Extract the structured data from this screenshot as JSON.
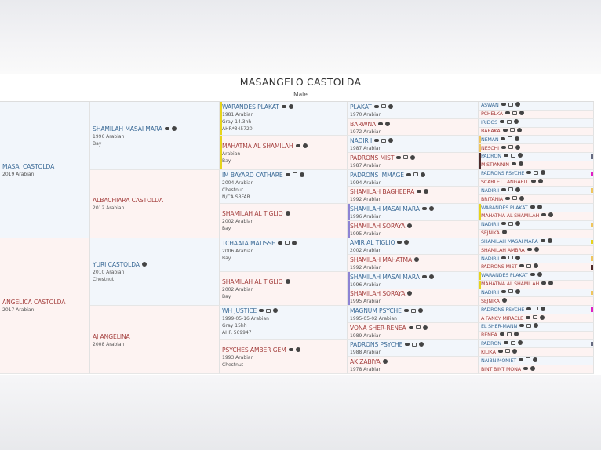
{
  "header": {
    "title": "MASANGELO CASTOLDA",
    "subtitle": "Male"
  },
  "colors": {
    "male_name": "#3d6c98",
    "female_name": "#a5403f",
    "male_bg": "#f2f6fb",
    "female_bg": "#fdf3f2",
    "yellow": "#e6d41c",
    "purple": "#8d83d4",
    "orange": "#efc55e",
    "brown": "#4e2a2a",
    "gray": "#666a80",
    "magenta": "#e01fc4"
  },
  "generations": [
    [
      {
        "name": "MASAI CASTOLDA",
        "lines": [
          "2019 Arabian"
        ],
        "icons": []
      },
      {
        "name": "ANGELICA CASTOLDA",
        "lines": [
          "2017 Arabian"
        ],
        "icons": []
      }
    ],
    [
      {
        "name": "SHAMILAH MASAI MARA",
        "lines": [
          "1996 Arabian",
          "Bay"
        ],
        "icons": [
          "comment",
          "info"
        ]
      },
      {
        "name": "ALBACHIARA CASTOLDA",
        "lines": [
          "2012 Arabian"
        ],
        "icons": []
      },
      {
        "name": "YURI CASTOLDA",
        "lines": [
          "2010 Arabian",
          "Chestnut"
        ],
        "icons": [
          "info"
        ]
      },
      {
        "name": "AJ ANGELINA",
        "lines": [
          "2008 Arabian"
        ],
        "icons": []
      }
    ],
    [
      {
        "name": "WARANDES PLAKAT",
        "lines": [
          "1981 Arabian",
          "Gray 14.3hh",
          "AHR*345720"
        ],
        "icons": [
          "comment",
          "info"
        ],
        "markL": "yellow",
        "top": true
      },
      {
        "name": "MAHATMA AL SHAMILAH",
        "lines": [
          "Arabian",
          "Bay"
        ],
        "icons": [
          "comment",
          "info"
        ],
        "markL": "yellow"
      },
      {
        "name": "IM BAYARD CATHARE",
        "lines": [
          "2004 Arabian",
          "Chestnut",
          "N/CA SBFAR"
        ],
        "icons": [
          "comment",
          "photo",
          "info"
        ],
        "top": true
      },
      {
        "name": "SHAMILAH AL TIGLIO",
        "lines": [
          "2002 Arabian",
          "Bay"
        ],
        "icons": [
          "info"
        ]
      },
      {
        "name": "TCHAATA MATISSE",
        "lines": [
          "2006 Arabian",
          "Bay"
        ],
        "icons": [
          "comment",
          "photo",
          "info"
        ],
        "top": true
      },
      {
        "name": "SHAMILAH AL TIGLIO",
        "lines": [
          "2002 Arabian",
          "Bay"
        ],
        "icons": [
          "info"
        ]
      },
      {
        "name": "WH JUSTICE",
        "lines": [
          "1999-05-16 Arabian",
          "Gray 15hh",
          "AHR 569947"
        ],
        "icons": [
          "comment",
          "photo",
          "info"
        ],
        "top": true
      },
      {
        "name": "PSYCHES AMBER GEM",
        "lines": [
          "1993 Arabian",
          "Chestnut"
        ],
        "icons": [
          "comment",
          "info"
        ]
      }
    ],
    [
      {
        "name": "PLAKAT",
        "lines": [
          "1970 Arabian"
        ],
        "icons": [
          "comment",
          "photo",
          "info"
        ]
      },
      {
        "name": "BARWNA",
        "lines": [
          "1972 Arabian"
        ],
        "icons": [
          "comment",
          "info"
        ]
      },
      {
        "name": "NADIR I",
        "lines": [
          "1987 Arabian"
        ],
        "icons": [
          "comment",
          "photo",
          "info"
        ]
      },
      {
        "name": "PADRONS MIST",
        "lines": [
          "1987 Arabian"
        ],
        "icons": [
          "comment",
          "photo",
          "info"
        ]
      },
      {
        "name": "PADRONS IMMAGE",
        "lines": [
          "1994 Arabian"
        ],
        "icons": [
          "comment",
          "photo",
          "info"
        ]
      },
      {
        "name": "SHAMILAH BAGHEERA",
        "lines": [
          "1992 Arabian"
        ],
        "icons": [
          "comment",
          "info"
        ]
      },
      {
        "name": "SHAMILAH MASAI MARA",
        "lines": [
          "1996 Arabian"
        ],
        "icons": [
          "comment",
          "info"
        ],
        "markL": "purple"
      },
      {
        "name": "SHAMILAH SORAYA",
        "lines": [
          "1995 Arabian"
        ],
        "icons": [
          "info"
        ],
        "markL": "purple"
      },
      {
        "name": "AMIR AL TIGLIO",
        "lines": [
          "2002 Arabian"
        ],
        "icons": [
          "comment",
          "info"
        ]
      },
      {
        "name": "SHAMILAH MAHATMA",
        "lines": [
          "1992 Arabian"
        ],
        "icons": [
          "info"
        ]
      },
      {
        "name": "SHAMILAH MASAI MARA",
        "lines": [
          "1996 Arabian"
        ],
        "icons": [
          "comment",
          "info"
        ],
        "markL": "purple"
      },
      {
        "name": "SHAMILAH SORAYA",
        "lines": [
          "1995 Arabian"
        ],
        "icons": [
          "info"
        ],
        "markL": "purple"
      },
      {
        "name": "MAGNUM PSYCHE",
        "lines": [
          "1995-05-02 Arabian"
        ],
        "icons": [
          "comment",
          "photo",
          "info"
        ]
      },
      {
        "name": "VONA SHER-RENEA",
        "lines": [
          "1989 Arabian"
        ],
        "icons": [
          "comment",
          "photo",
          "info"
        ]
      },
      {
        "name": "PADRONS PSYCHE",
        "lines": [
          "1988 Arabian"
        ],
        "icons": [
          "comment",
          "photo",
          "info"
        ]
      },
      {
        "name": "AK ZABIYA",
        "lines": [
          "1978 Arabian"
        ],
        "icons": [
          "info"
        ]
      }
    ],
    [
      {
        "name": "ASWAN",
        "icons": [
          "comment",
          "photo",
          "info"
        ]
      },
      {
        "name": "PCHELKA",
        "icons": [
          "comment",
          "photo",
          "info"
        ]
      },
      {
        "name": "IRIDOS",
        "icons": [
          "comment",
          "photo",
          "info"
        ]
      },
      {
        "name": "BARAKA",
        "icons": [
          "comment",
          "photo",
          "info"
        ]
      },
      {
        "name": "NEMAN",
        "icons": [
          "comment",
          "photo",
          "info"
        ],
        "markL": "orange"
      },
      {
        "name": "NESCHI",
        "icons": [
          "comment",
          "photo",
          "info"
        ],
        "markL": "orange"
      },
      {
        "name": "PADRON",
        "icons": [
          "comment",
          "photo",
          "info"
        ],
        "markL": "brown",
        "markR": "gray"
      },
      {
        "name": "MISTIANNIN",
        "icons": [
          "comment",
          "info"
        ],
        "markL": "brown"
      },
      {
        "name": "PADRONS PSYCHE",
        "icons": [
          "comment",
          "photo",
          "info"
        ],
        "markR": "magenta"
      },
      {
        "name": "SCARLETT ANGAELL",
        "icons": [
          "comment",
          "info"
        ]
      },
      {
        "name": "NADIR I",
        "icons": [
          "comment",
          "photo",
          "info"
        ],
        "markR": "orange"
      },
      {
        "name": "BRITANIA",
        "icons": [
          "comment",
          "photo",
          "info"
        ]
      },
      {
        "name": "WARANDES PLAKAT",
        "icons": [
          "comment",
          "info"
        ],
        "markL": "yellow"
      },
      {
        "name": "MAHATMA AL SHAMILAH",
        "icons": [
          "comment",
          "info"
        ],
        "markL": "yellow"
      },
      {
        "name": "NADIR I",
        "icons": [
          "comment",
          "photo",
          "info"
        ],
        "markR": "orange"
      },
      {
        "name": "SEJNIKA",
        "icons": [
          "info"
        ]
      },
      {
        "name": "SHAMILAH MASAI MARA",
        "icons": [
          "comment",
          "info"
        ],
        "markR": "yellow"
      },
      {
        "name": "SHAMILAH AMBRA",
        "icons": [
          "comment",
          "info"
        ]
      },
      {
        "name": "NADIR I",
        "icons": [
          "comment",
          "photo",
          "info"
        ],
        "markR": "orange"
      },
      {
        "name": "PADRONS MIST",
        "icons": [
          "comment",
          "photo",
          "info"
        ],
        "markR": "brown"
      },
      {
        "name": "WARANDES PLAKAT",
        "icons": [
          "comment",
          "info"
        ],
        "markL": "yellow"
      },
      {
        "name": "MAHATMA AL SHAMILAH",
        "icons": [
          "comment",
          "info"
        ],
        "markL": "yellow"
      },
      {
        "name": "NADIR I",
        "icons": [
          "comment",
          "photo",
          "info"
        ],
        "markR": "orange"
      },
      {
        "name": "SEJNIKA",
        "icons": [
          "info"
        ]
      },
      {
        "name": "PADRONS PSYCHE",
        "icons": [
          "comment",
          "photo",
          "info"
        ],
        "markR": "magenta"
      },
      {
        "name": "A FANCY MIRACLE",
        "icons": [
          "comment",
          "photo",
          "info"
        ]
      },
      {
        "name": "EL SHER-MANN",
        "icons": [
          "comment",
          "photo",
          "info"
        ]
      },
      {
        "name": "RENEA",
        "icons": [
          "comment",
          "photo",
          "info"
        ]
      },
      {
        "name": "PADRON",
        "icons": [
          "comment",
          "photo",
          "info"
        ],
        "markR": "gray"
      },
      {
        "name": "KILIKA",
        "icons": [
          "comment",
          "photo",
          "info"
        ]
      },
      {
        "name": "NAIBN MONIET",
        "icons": [
          "comment",
          "photo",
          "info"
        ]
      },
      {
        "name": "BINT BINT MONA",
        "icons": [
          "comment",
          "info"
        ]
      }
    ]
  ]
}
